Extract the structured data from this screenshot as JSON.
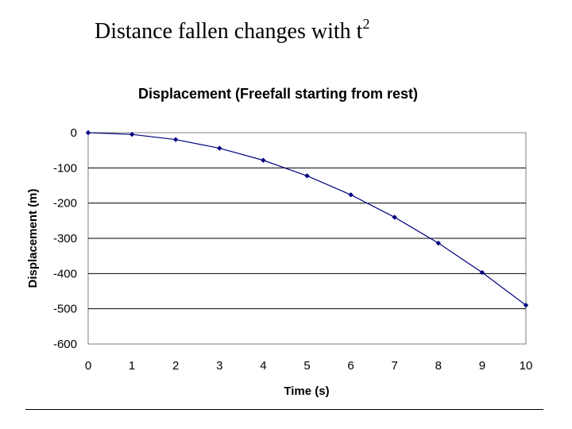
{
  "slide": {
    "title_text": "Distance fallen changes with t",
    "title_superscript": "2"
  },
  "chart_data": {
    "type": "line",
    "title": "Displacement (Freefall starting from rest)",
    "xlabel": "Time (s)",
    "ylabel": "Displacement (m)",
    "x": [
      0,
      1,
      2,
      3,
      4,
      5,
      6,
      7,
      8,
      9,
      10
    ],
    "series": [
      {
        "values": [
          0,
          -4.9,
          -19.6,
          -44.1,
          -78.4,
          -122.5,
          -176.4,
          -240.1,
          -313.6,
          -396.9,
          -490
        ]
      }
    ],
    "xlim": [
      0,
      10
    ],
    "ylim": [
      -600,
      0
    ],
    "x_ticks": [
      0,
      1,
      2,
      3,
      4,
      5,
      6,
      7,
      8,
      9,
      10
    ],
    "y_ticks": [
      0,
      -100,
      -200,
      -300,
      -400,
      -500,
      -600
    ],
    "gridlines": "horizontal",
    "legend": "none",
    "line_color": "#000080",
    "marker": "diamond",
    "plot_background": "#ffffff"
  }
}
